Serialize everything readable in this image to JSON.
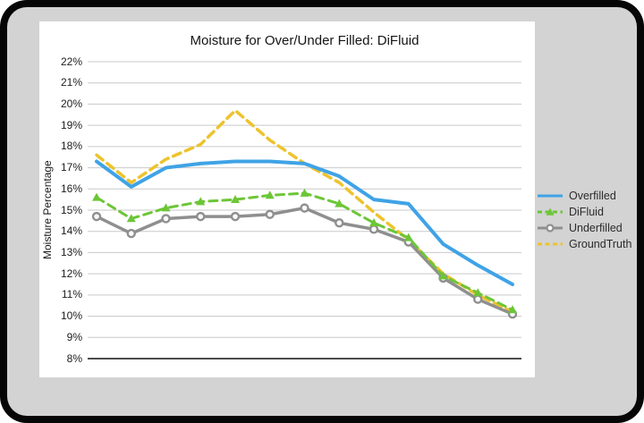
{
  "window": {
    "frame_color": "#060606",
    "panel_color": "#d3d3d3",
    "card_color": "#ffffff"
  },
  "chart_data": {
    "type": "line",
    "title": "Moisture for Over/Under Filled: DiFluid",
    "ylabel": "Moisture Percentage",
    "xlabel": "",
    "ylim": [
      8,
      22
    ],
    "ytick_step": 1,
    "yticks": [
      "22%",
      "21%",
      "20%",
      "19%",
      "18%",
      "17%",
      "16%",
      "15%",
      "14%",
      "13%",
      "12%",
      "11%",
      "10%",
      "9%",
      "8%"
    ],
    "x": [
      1,
      2,
      3,
      4,
      5,
      6,
      7,
      8,
      9,
      10,
      11,
      12,
      13
    ],
    "grid": true,
    "legend_position": "right-outside",
    "axis_color": "#111111",
    "grid_color": "#c9c9c9",
    "z_order": [
      "GroundTruth",
      "Overfilled",
      "Underfilled",
      "DiFluid"
    ],
    "series": [
      {
        "name": "Overfilled",
        "color": "#3fa3e6",
        "style": "solid",
        "marker": "none",
        "line_width": 4,
        "values": [
          17.3,
          16.1,
          17.0,
          17.2,
          17.3,
          17.3,
          17.2,
          16.6,
          15.5,
          15.3,
          13.4,
          12.4,
          11.5
        ]
      },
      {
        "name": "DiFluid",
        "color": "#6cc637",
        "style": "dashed",
        "marker": "triangle",
        "line_width": 3,
        "values": [
          15.6,
          14.6,
          15.1,
          15.4,
          15.5,
          15.7,
          15.8,
          15.3,
          14.4,
          13.7,
          11.9,
          11.1,
          10.3
        ]
      },
      {
        "name": "Underfilled",
        "color": "#8f8f8f",
        "style": "solid",
        "marker": "circle",
        "line_width": 3.5,
        "values": [
          14.7,
          13.9,
          14.6,
          14.7,
          14.7,
          14.8,
          15.1,
          14.4,
          14.1,
          13.5,
          11.8,
          10.8,
          10.1
        ]
      },
      {
        "name": "GroundTruth",
        "color": "#edc32d",
        "style": "dashed",
        "marker": "none",
        "line_width": 3.5,
        "values": [
          17.6,
          16.3,
          17.4,
          18.1,
          19.7,
          18.3,
          17.2,
          16.3,
          14.9,
          13.6,
          12.0,
          11.0,
          10.2
        ]
      }
    ]
  }
}
